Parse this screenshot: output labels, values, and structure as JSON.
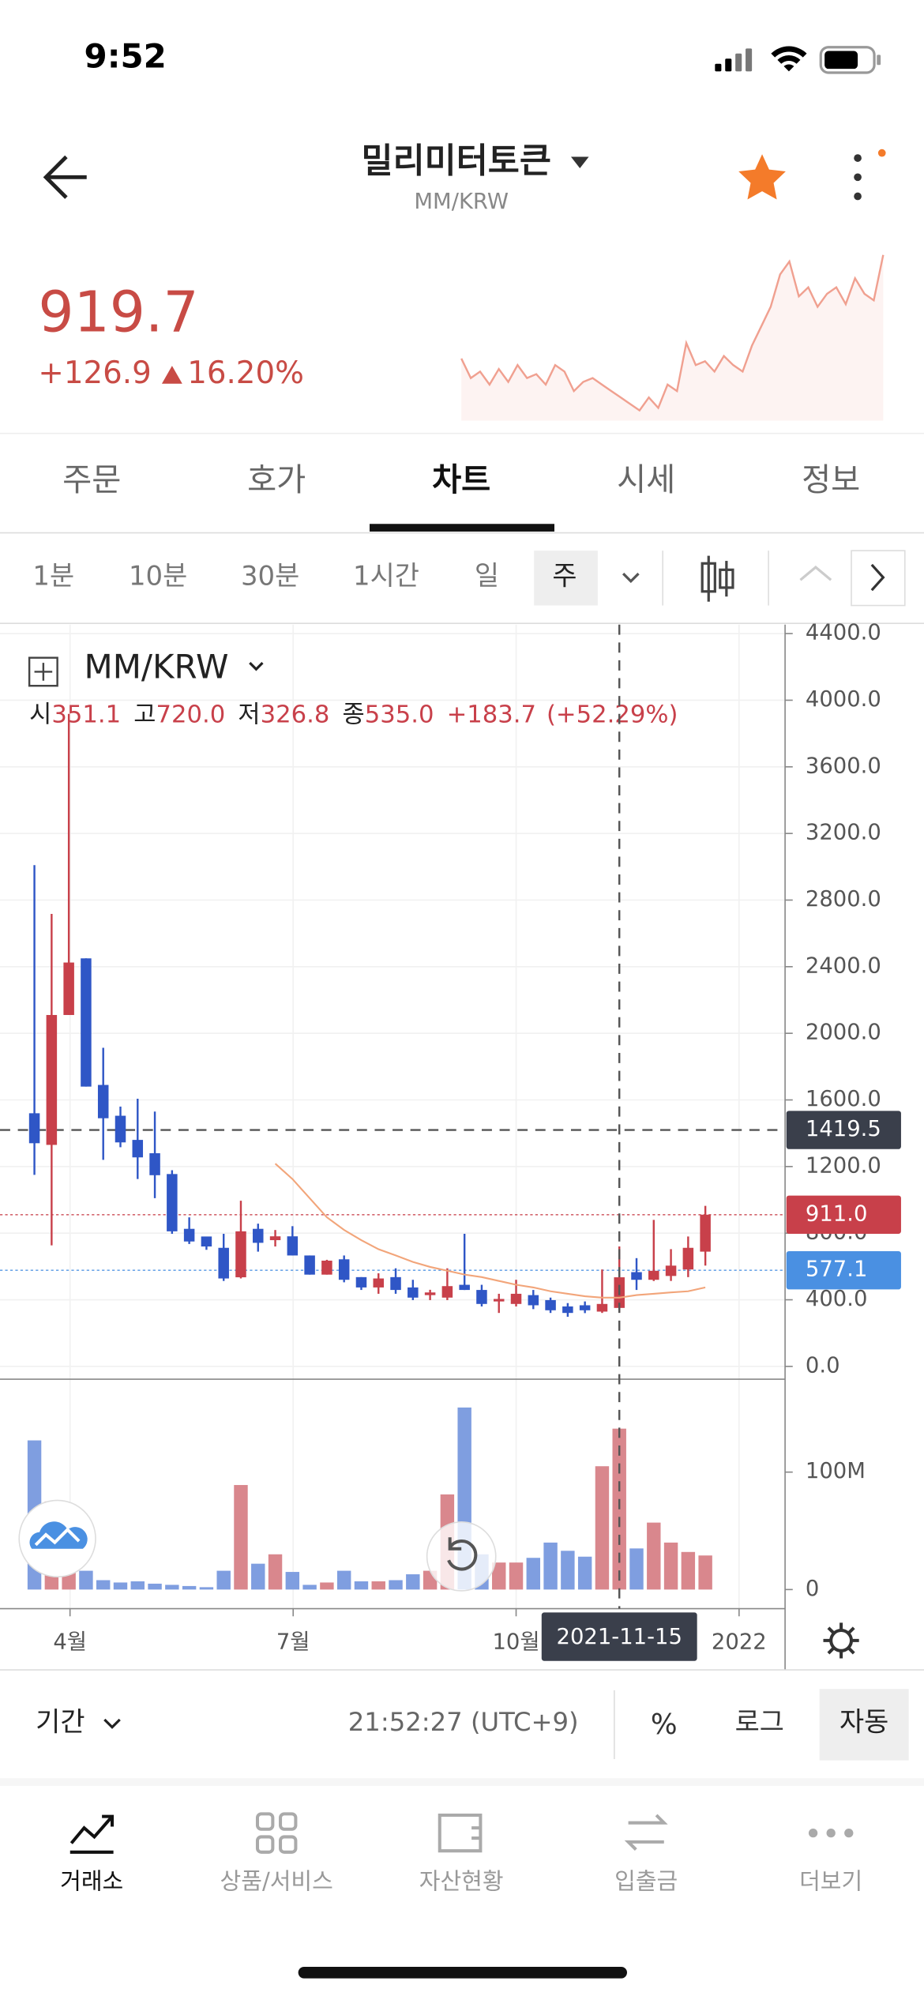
{
  "status_bar": {
    "time": "9:52"
  },
  "header": {
    "title": "밀리미터토큰",
    "pair": "MM/KRW"
  },
  "price": {
    "value": "919.7",
    "change": "+126.9",
    "change_pct": "16.20%",
    "sparkline": {
      "color": "#f0a090",
      "values": [
        60,
        45,
        50,
        40,
        52,
        42,
        55,
        45,
        48,
        40,
        55,
        50,
        35,
        42,
        45,
        40,
        35,
        30,
        25,
        20,
        30,
        22,
        40,
        35,
        72,
        55,
        58,
        50,
        62,
        55,
        50,
        70,
        85,
        100,
        125,
        135,
        108,
        115,
        100,
        110,
        115,
        102,
        122,
        110,
        105,
        140
      ]
    }
  },
  "tabs": [
    "주문",
    "호가",
    "차트",
    "시세",
    "정보"
  ],
  "intervals": [
    "1분",
    "10분",
    "30분",
    "1시간",
    "일",
    "주"
  ],
  "chart_data": {
    "type": "candlestick",
    "title": "MM/KRW",
    "legend": {
      "labels": [
        "시",
        "고",
        "저",
        "종"
      ],
      "values": [
        "351.1",
        "720.0",
        "326.8",
        "535.0"
      ],
      "change": "+183.7",
      "change_pct": "(+52.29%)"
    },
    "colors": {
      "up": "#c8404a",
      "down": "#2f56c6",
      "volume_up": "#d9878d",
      "volume_down": "#7f9ee0"
    },
    "open": [
      1520,
      1330,
      2110,
      2450,
      1690,
      1505,
      1360,
      1280,
      1155,
      826,
      780,
      712,
      535,
      826,
      758,
      781,
      666,
      551,
      643,
      536,
      474,
      536,
      474,
      428,
      413,
      490,
      459,
      390,
      375,
      428,
      398,
      360,
      367,
      329,
      351.1,
      566,
      520,
      543,
      582,
      689
    ],
    "high": [
      3010,
      2717,
      3918,
      2450,
      1913,
      1560,
      1607,
      1530,
      1178,
      895,
      775,
      796,
      995,
      857,
      819,
      842,
      666,
      640,
      666,
      536,
      559,
      589,
      520,
      460,
      589,
      796,
      490,
      436,
      520,
      459,
      413,
      380,
      390,
      582,
      720,
      650,
      880,
      704,
      780,
      964
    ],
    "low": [
      1150,
      727,
      2110,
      1680,
      1240,
      1316,
      1125,
      1010,
      796,
      735,
      700,
      513,
      528,
      689,
      720,
      666,
      551,
      551,
      505,
      459,
      436,
      436,
      398,
      398,
      398,
      459,
      360,
      321,
      360,
      344,
      321,
      298,
      320,
      321,
      326.8,
      459,
      513,
      513,
      536,
      605
    ],
    "close": [
      1340,
      2110,
      2425,
      1680,
      1490,
      1345,
      1255,
      1148,
      811,
      750,
      720,
      528,
      811,
      742,
      781,
      666,
      551,
      635,
      520,
      474,
      528,
      459,
      413,
      444,
      482,
      459,
      375,
      405,
      436,
      367,
      337,
      321,
      337,
      375,
      535.0,
      520,
      574,
      605,
      712,
      911
    ],
    "ma": {
      "color": "#f2a57a",
      "values": [
        null,
        null,
        null,
        null,
        null,
        null,
        null,
        null,
        null,
        null,
        null,
        null,
        null,
        null,
        1217,
        1125,
        1010,
        895,
        819,
        758,
        704,
        666,
        627,
        597,
        574,
        551,
        536,
        513,
        490,
        474,
        451,
        436,
        421,
        413,
        413,
        428,
        436,
        444,
        451,
        474
      ]
    },
    "xlim": [
      -2.0,
      43.56
    ],
    "xticks": [
      {
        "value": 2.07,
        "label": "4월"
      },
      {
        "value": 15.04,
        "label": "7월"
      },
      {
        "value": 28,
        "label": "10월"
      },
      {
        "value": 40.96,
        "label": "2022"
      }
    ],
    "ylim": [
      -77,
      4454
    ],
    "yticks": [
      {
        "value": 0,
        "label": "0.0"
      },
      {
        "value": 400,
        "label": "400.0"
      },
      {
        "value": 800,
        "label": "800.0"
      },
      {
        "value": 1200,
        "label": "1200.0"
      },
      {
        "value": 1600,
        "label": "1600.0"
      },
      {
        "value": 2000,
        "label": "2000.0"
      },
      {
        "value": 2400,
        "label": "2400.0"
      },
      {
        "value": 2800,
        "label": "2800.0"
      },
      {
        "value": 3200,
        "label": "3200.0"
      },
      {
        "value": 3600,
        "label": "3600.0"
      },
      {
        "value": 4000,
        "label": "4000.0"
      },
      {
        "value": 4400,
        "label": "4400.0"
      }
    ],
    "grid": true,
    "volume": {
      "values": [
        127,
        75,
        40,
        16,
        8,
        6,
        7,
        5,
        4,
        3,
        2,
        16,
        89,
        22,
        30,
        15,
        4,
        6,
        16,
        7,
        7,
        8,
        13,
        16,
        81,
        155,
        30,
        23,
        23,
        27,
        40,
        33,
        28,
        105,
        137,
        35,
        57,
        40,
        32,
        29
      ],
      "ylim": [
        0,
        178
      ],
      "yticks": [
        {
          "value": 0,
          "label": "0"
        },
        {
          "value": 100,
          "label": "100M"
        }
      ]
    },
    "price_lines": [
      {
        "value": 1419.5,
        "label": "1419.5",
        "color": "#3a3f4b",
        "style": "dashed"
      },
      {
        "value": 911.0,
        "label": "911.0",
        "color": "#c8404a",
        "style": "dotted"
      },
      {
        "value": 577.1,
        "label": "577.1",
        "color": "#4a90e2",
        "style": "dotted"
      }
    ],
    "crosshair": {
      "index": 34,
      "label": "2021-11-15"
    }
  },
  "footer": {
    "period": "기간",
    "time": "21:52:27 (UTC+9)",
    "percent": "%",
    "log": "로그",
    "auto": "자동"
  },
  "nav": [
    "거래소",
    "상품/서비스",
    "자산현황",
    "입출금",
    "더보기"
  ]
}
